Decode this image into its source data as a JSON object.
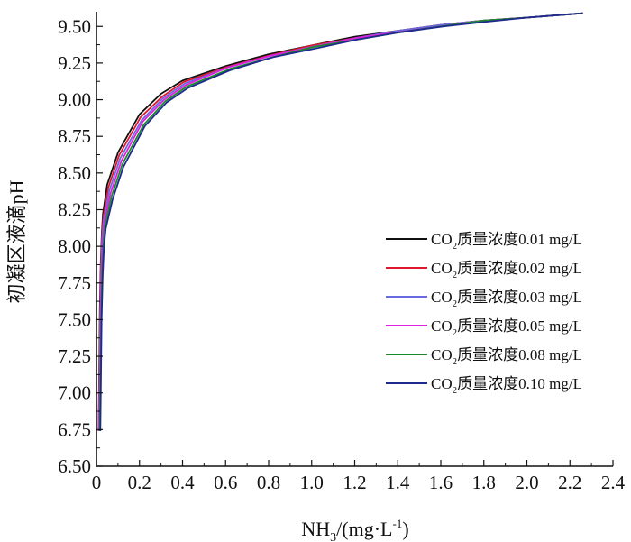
{
  "chart_data": {
    "type": "line",
    "xlabel_base": "NH",
    "xlabel_sub": "3",
    "xlabel_mid": "/(mg·L",
    "xlabel_sup": "-1",
    "xlabel_end": ")",
    "ylabel": "初凝区液滴pH",
    "xlim": [
      0,
      2.4
    ],
    "ylim": [
      6.5,
      9.6
    ],
    "x_ticks": [
      "0",
      "0.2",
      "0.4",
      "0.6",
      "0.8",
      "1.0",
      "1.2",
      "1.4",
      "1.6",
      "1.8",
      "2.0",
      "2.2",
      "2.4"
    ],
    "y_ticks": [
      "6.50",
      "6.75",
      "7.00",
      "7.25",
      "7.50",
      "7.75",
      "8.00",
      "8.25",
      "8.50",
      "8.75",
      "9.00",
      "9.25",
      "9.50"
    ],
    "legend_position": "right",
    "series": [
      {
        "name_prefix": "CO",
        "name_sub": "2",
        "name_suffix": "质量浓度0.01 mg/L",
        "color": "#111111",
        "x": [
          0.01,
          0.013,
          0.016,
          0.02,
          0.025,
          0.03,
          0.05,
          0.1,
          0.2,
          0.3,
          0.4,
          0.6,
          0.8,
          1.0,
          1.2,
          1.4,
          1.6,
          1.8,
          2.0,
          2.26
        ],
        "y": [
          6.74,
          7.2,
          7.6,
          7.9,
          8.1,
          8.22,
          8.42,
          8.64,
          8.9,
          9.04,
          9.13,
          9.23,
          9.31,
          9.37,
          9.43,
          9.47,
          9.51,
          9.54,
          9.56,
          9.59
        ]
      },
      {
        "name_prefix": "CO",
        "name_sub": "2",
        "name_suffix": "质量浓度0.02 mg/L",
        "color": "#e0182e",
        "x": [
          0.011,
          0.014,
          0.017,
          0.021,
          0.026,
          0.032,
          0.055,
          0.105,
          0.205,
          0.305,
          0.405,
          0.6,
          0.8,
          1.0,
          1.2,
          1.4,
          1.6,
          1.8,
          2.0,
          2.26
        ],
        "y": [
          6.74,
          7.2,
          7.58,
          7.88,
          8.08,
          8.2,
          8.4,
          8.62,
          8.88,
          9.02,
          9.12,
          9.22,
          9.3,
          9.37,
          9.42,
          9.47,
          9.51,
          9.54,
          9.56,
          9.59
        ]
      },
      {
        "name_prefix": "CO",
        "name_sub": "2",
        "name_suffix": "质量浓度0.03 mg/L",
        "color": "#6a6ae0",
        "x": [
          0.012,
          0.015,
          0.018,
          0.022,
          0.027,
          0.034,
          0.06,
          0.11,
          0.21,
          0.31,
          0.41,
          0.61,
          0.81,
          1.0,
          1.2,
          1.4,
          1.6,
          1.8,
          2.0,
          2.26
        ],
        "y": [
          6.74,
          7.18,
          7.56,
          7.86,
          8.06,
          8.18,
          8.38,
          8.6,
          8.86,
          9.01,
          9.11,
          9.22,
          9.3,
          9.36,
          9.42,
          9.47,
          9.51,
          9.54,
          9.56,
          9.59
        ]
      },
      {
        "name_prefix": "CO",
        "name_sub": "2",
        "name_suffix": "质量浓度0.05 mg/L",
        "color": "#e020e0",
        "x": [
          0.014,
          0.017,
          0.02,
          0.024,
          0.03,
          0.037,
          0.065,
          0.115,
          0.215,
          0.315,
          0.415,
          0.61,
          0.81,
          1.01,
          1.2,
          1.4,
          1.6,
          1.8,
          2.0,
          2.26
        ],
        "y": [
          6.74,
          7.16,
          7.54,
          7.84,
          8.04,
          8.16,
          8.36,
          8.58,
          8.85,
          9.0,
          9.1,
          9.22,
          9.3,
          9.36,
          9.42,
          9.46,
          9.5,
          9.54,
          9.56,
          9.59
        ]
      },
      {
        "name_prefix": "CO",
        "name_sub": "2",
        "name_suffix": "质量浓度0.08 mg/L",
        "color": "#1a8a2a",
        "x": [
          0.016,
          0.019,
          0.022,
          0.027,
          0.033,
          0.04,
          0.07,
          0.12,
          0.22,
          0.32,
          0.42,
          0.62,
          0.82,
          1.01,
          1.21,
          1.41,
          1.6,
          1.8,
          2.0,
          2.26
        ],
        "y": [
          6.74,
          7.14,
          7.52,
          7.82,
          8.02,
          8.14,
          8.34,
          8.56,
          8.83,
          8.99,
          9.09,
          9.21,
          9.29,
          9.36,
          9.41,
          9.46,
          9.5,
          9.54,
          9.56,
          9.59
        ]
      },
      {
        "name_prefix": "CO",
        "name_sub": "2",
        "name_suffix": "质量浓度0.10 mg/L",
        "color": "#1e2a8c",
        "x": [
          0.018,
          0.021,
          0.024,
          0.029,
          0.035,
          0.043,
          0.075,
          0.125,
          0.225,
          0.325,
          0.425,
          0.62,
          0.82,
          1.02,
          1.21,
          1.41,
          1.61,
          1.8,
          2.0,
          2.26
        ],
        "y": [
          6.74,
          7.12,
          7.5,
          7.8,
          8.0,
          8.12,
          8.32,
          8.54,
          8.82,
          8.98,
          9.08,
          9.2,
          9.29,
          9.35,
          9.41,
          9.46,
          9.5,
          9.53,
          9.56,
          9.59
        ]
      }
    ]
  }
}
